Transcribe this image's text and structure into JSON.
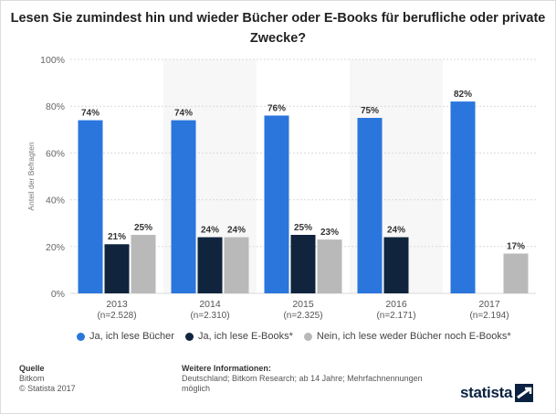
{
  "title": "Lesen Sie zumindest hin und wieder Bücher oder E-Books für berufliche oder private Zwecke?",
  "chart_data": {
    "type": "bar",
    "ylabel": "Anteil der Befragten",
    "ylim": [
      0,
      100
    ],
    "yticks": [
      "0%",
      "20%",
      "40%",
      "60%",
      "80%",
      "100%"
    ],
    "categories": [
      {
        "year": "2013",
        "n": "(n=2.528)"
      },
      {
        "year": "2014",
        "n": "(n=2.310)"
      },
      {
        "year": "2015",
        "n": "(n=2.325)"
      },
      {
        "year": "2016",
        "n": "(n=2.171)"
      },
      {
        "year": "2017",
        "n": "(n=2.194)"
      }
    ],
    "series": [
      {
        "name": "Ja, ich lese Bücher",
        "color": "#2a76dd",
        "values": [
          74,
          74,
          76,
          75,
          82
        ],
        "labels": [
          "74%",
          "74%",
          "76%",
          "75%",
          "82%"
        ]
      },
      {
        "name": "Ja, ich lese E-Books*",
        "color": "#10243d",
        "values": [
          21,
          24,
          25,
          24,
          null
        ],
        "labels": [
          "21%",
          "24%",
          "25%",
          "24%",
          null
        ]
      },
      {
        "name": "Nein, ich lese weder Bücher noch E-Books*",
        "color": "#b9b9b9",
        "values": [
          25,
          24,
          23,
          null,
          17
        ],
        "labels": [
          "25%",
          "24%",
          "23%",
          null,
          "17%"
        ]
      }
    ],
    "grid": true,
    "legend_position": "bottom"
  },
  "footer": {
    "source_heading": "Quelle",
    "source_name": "Bitkom",
    "copyright": "© Statista 2017",
    "info_heading": "Weitere Informationen:",
    "info_text": "Deutschland; Bitkom Research; ab 14 Jahre; Mehrfachnennungen möglich"
  },
  "logo_text": "statista"
}
